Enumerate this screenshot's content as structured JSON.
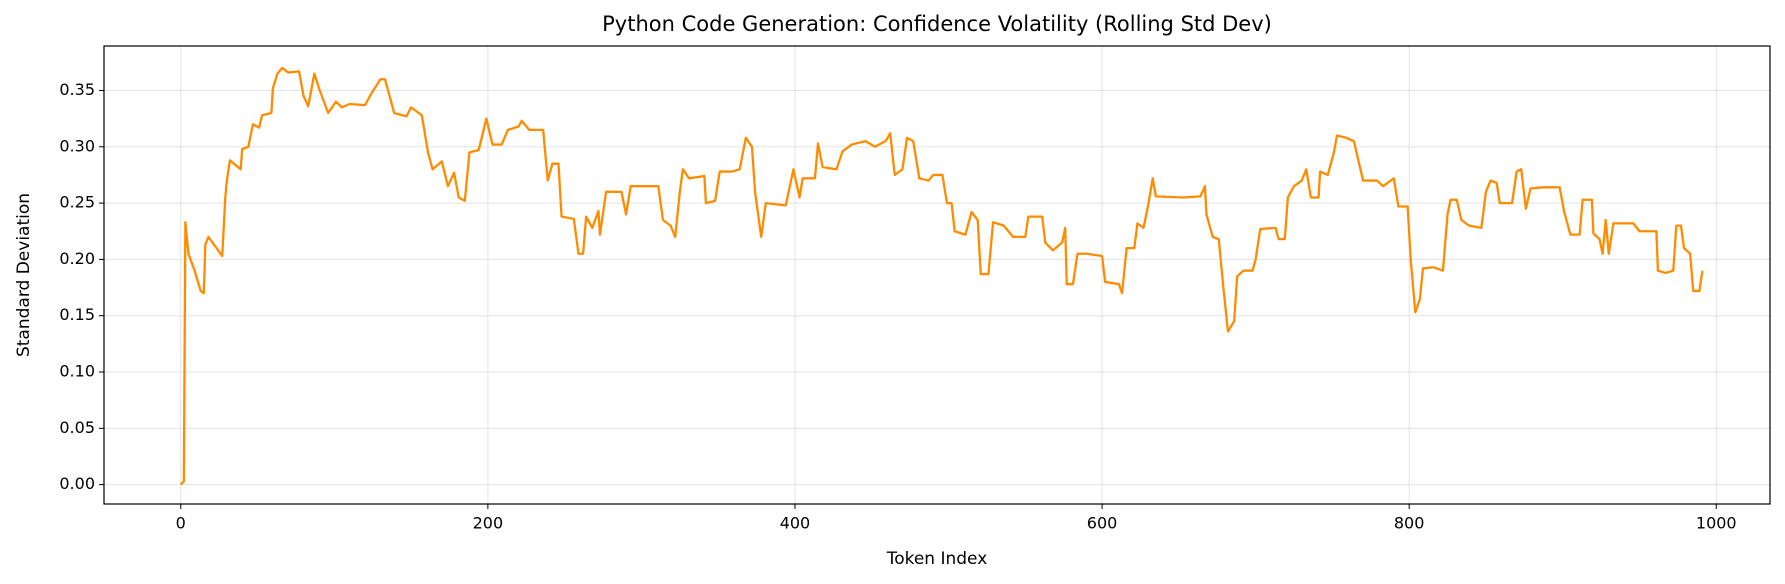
{
  "chart_data": {
    "type": "line",
    "title": "Python Code Generation: Confidence Volatility (Rolling Std Dev)",
    "x_label": "Token Index",
    "y_label": "Standard Deviation",
    "xlim": [
      -50,
      1035
    ],
    "ylim": [
      -0.0172,
      0.3895
    ],
    "xticks": [
      0,
      200,
      400,
      600,
      800,
      1000
    ],
    "yticks": [
      {
        "value": 0,
        "label": "0.00"
      },
      0.05,
      {
        "value": 0.1,
        "label": "0.10"
      },
      0.15,
      {
        "value": 0.2,
        "label": "0.20"
      },
      0.25,
      {
        "value": 0.3,
        "label": "0.30"
      },
      0.35
    ],
    "grid": true,
    "series": [
      {
        "color": "#ff8c00",
        "x": [
          0,
          2,
          3,
          5,
          9,
          13,
          15,
          16,
          18,
          27,
          29,
          30,
          32,
          39,
          40,
          44,
          47,
          51,
          53,
          59,
          60,
          63,
          66,
          70,
          77,
          80,
          83,
          87,
          90,
          96,
          101,
          105,
          110,
          120,
          124,
          130,
          133,
          139,
          147,
          150,
          157,
          161,
          164,
          170,
          174,
          178,
          181,
          185,
          188,
          194,
          199,
          203,
          209,
          213,
          220,
          222,
          227,
          236,
          239,
          242,
          246,
          248,
          256,
          259,
          262,
          264,
          268,
          272,
          273,
          277,
          287,
          290,
          293,
          311,
          314,
          319,
          322,
          325,
          327,
          331,
          341,
          342,
          348,
          351,
          359,
          364,
          368,
          372,
          374,
          378,
          381,
          394,
          399,
          403,
          405,
          413,
          415,
          418,
          427,
          431,
          437,
          446,
          452,
          459,
          462,
          465,
          470,
          473,
          477,
          481,
          487,
          490,
          496,
          499,
          502,
          504,
          511,
          515,
          519,
          521,
          526,
          529,
          536,
          542,
          550,
          552,
          561,
          563,
          568,
          574,
          576,
          577,
          581,
          584,
          590,
          600,
          602,
          611,
          613,
          616,
          621,
          623,
          627,
          630,
          633,
          635,
          653,
          664,
          667,
          668,
          672,
          676,
          679,
          682,
          686,
          688,
          692,
          698,
          700,
          703,
          713,
          715,
          719,
          721,
          725,
          730,
          733,
          736,
          741,
          742,
          747,
          751,
          753,
          759,
          764,
          770,
          779,
          783,
          790,
          793,
          799,
          801,
          804,
          807,
          809,
          816,
          822,
          825,
          827,
          831,
          834,
          839,
          847,
          850,
          853,
          857,
          859,
          867,
          870,
          873,
          876,
          879,
          887,
          898,
          901,
          905,
          911,
          913,
          919,
          920,
          924,
          926,
          928,
          930,
          933,
          946,
          950,
          961,
          962,
          967,
          972,
          974,
          977,
          979,
          983,
          985,
          989,
          991
        ],
        "values": [
          0,
          0.003,
          0.233,
          0.205,
          0.19,
          0.172,
          0.17,
          0.213,
          0.22,
          0.203,
          0.255,
          0.27,
          0.288,
          0.28,
          0.298,
          0.3,
          0.32,
          0.317,
          0.328,
          0.33,
          0.352,
          0.365,
          0.37,
          0.366,
          0.367,
          0.345,
          0.336,
          0.365,
          0.352,
          0.33,
          0.34,
          0.335,
          0.338,
          0.337,
          0.347,
          0.36,
          0.36,
          0.33,
          0.327,
          0.335,
          0.328,
          0.295,
          0.28,
          0.287,
          0.265,
          0.277,
          0.255,
          0.252,
          0.295,
          0.297,
          0.325,
          0.302,
          0.302,
          0.315,
          0.318,
          0.323,
          0.315,
          0.315,
          0.27,
          0.285,
          0.285,
          0.238,
          0.236,
          0.205,
          0.205,
          0.238,
          0.228,
          0.243,
          0.222,
          0.26,
          0.26,
          0.24,
          0.265,
          0.265,
          0.235,
          0.23,
          0.22,
          0.26,
          0.28,
          0.272,
          0.274,
          0.25,
          0.252,
          0.278,
          0.278,
          0.28,
          0.308,
          0.3,
          0.26,
          0.22,
          0.25,
          0.248,
          0.28,
          0.255,
          0.272,
          0.272,
          0.303,
          0.282,
          0.28,
          0.296,
          0.302,
          0.305,
          0.3,
          0.305,
          0.312,
          0.275,
          0.28,
          0.308,
          0.305,
          0.272,
          0.27,
          0.275,
          0.275,
          0.25,
          0.25,
          0.225,
          0.222,
          0.242,
          0.235,
          0.187,
          0.187,
          0.233,
          0.23,
          0.22,
          0.22,
          0.238,
          0.238,
          0.215,
          0.208,
          0.215,
          0.228,
          0.178,
          0.178,
          0.205,
          0.205,
          0.203,
          0.18,
          0.178,
          0.17,
          0.21,
          0.21,
          0.232,
          0.228,
          0.248,
          0.272,
          0.256,
          0.255,
          0.256,
          0.265,
          0.24,
          0.22,
          0.218,
          0.175,
          0.136,
          0.145,
          0.185,
          0.19,
          0.19,
          0.2,
          0.227,
          0.228,
          0.218,
          0.218,
          0.255,
          0.265,
          0.27,
          0.28,
          0.255,
          0.255,
          0.278,
          0.275,
          0.295,
          0.31,
          0.308,
          0.305,
          0.27,
          0.27,
          0.265,
          0.272,
          0.247,
          0.247,
          0.2,
          0.153,
          0.165,
          0.192,
          0.193,
          0.19,
          0.24,
          0.253,
          0.253,
          0.235,
          0.23,
          0.228,
          0.26,
          0.27,
          0.268,
          0.25,
          0.25,
          0.278,
          0.28,
          0.245,
          0.263,
          0.264,
          0.264,
          0.242,
          0.222,
          0.222,
          0.253,
          0.253,
          0.223,
          0.218,
          0.205,
          0.235,
          0.205,
          0.232,
          0.232,
          0.225,
          0.225,
          0.19,
          0.188,
          0.19,
          0.23,
          0.23,
          0.21,
          0.205,
          0.172,
          0.172,
          0.19
        ]
      }
    ]
  }
}
